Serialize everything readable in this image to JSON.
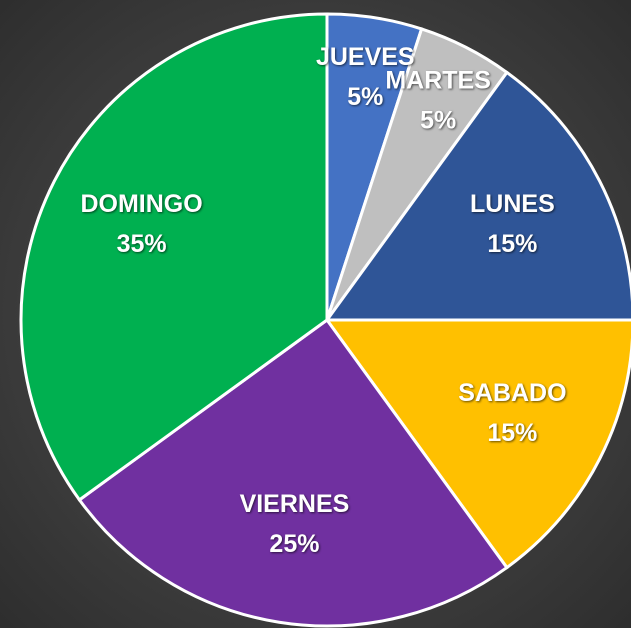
{
  "chart_data": {
    "type": "pie",
    "categories": [
      "JUEVES",
      "MARTES",
      "LUNES",
      "SABADO",
      "VIERNES",
      "DOMINGO"
    ],
    "values": [
      5,
      5,
      15,
      15,
      25,
      35
    ],
    "value_labels": [
      "5%",
      "5%",
      "15%",
      "15%",
      "25%",
      "35%"
    ],
    "colors": [
      "#4472c4",
      "#bfbfbf",
      "#2f5597",
      "#ffc000",
      "#7030a0",
      "#00b050"
    ]
  }
}
